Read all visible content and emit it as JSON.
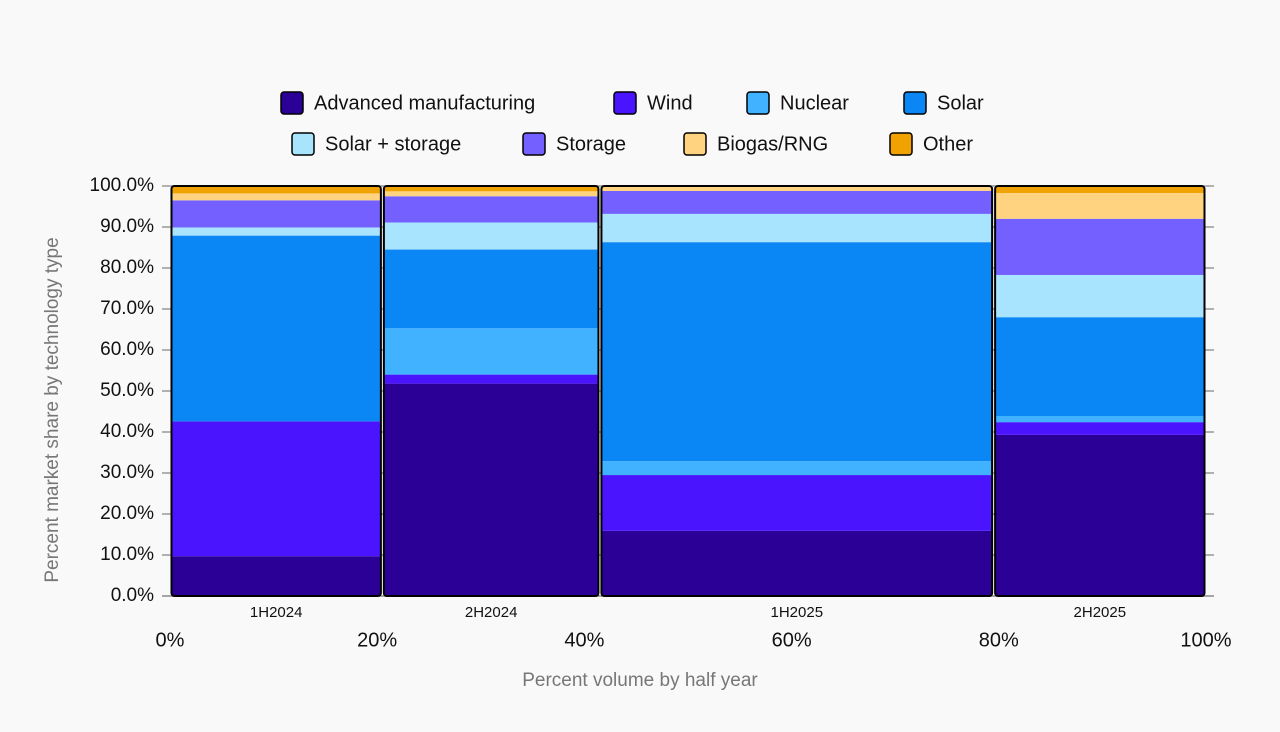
{
  "chart_data": {
    "type": "marimekko",
    "categories": [
      "1H2024",
      "2H2024",
      "1H2025",
      "2H2025"
    ],
    "widths": [
      20.5,
      21,
      38,
      20.5
    ],
    "series": [
      {
        "name": "Advanced manufacturing",
        "color": "#2a0096",
        "values": [
          9.7,
          51.8,
          15.9,
          39.3
        ]
      },
      {
        "name": "Wind",
        "color": "#4b14ff",
        "values": [
          32.9,
          2.2,
          13.6,
          3.1
        ]
      },
      {
        "name": "Nuclear",
        "color": "#40b2ff",
        "values": [
          0,
          11.3,
          3.4,
          1.5
        ]
      },
      {
        "name": "Solar",
        "color": "#0a86f5",
        "values": [
          45.3,
          19.2,
          53.4,
          24.1
        ]
      },
      {
        "name": "Solar + storage",
        "color": "#a9e4ff",
        "values": [
          2,
          6.6,
          6.9,
          10.3
        ]
      },
      {
        "name": "Storage",
        "color": "#7460ff",
        "values": [
          6.6,
          6.4,
          5.6,
          13.7
        ]
      },
      {
        "name": "Biogas/RNG",
        "color": "#ffd380",
        "values": [
          1.7,
          1.2,
          1.2,
          6.3
        ]
      },
      {
        "name": "Other",
        "color": "#f0a200",
        "values": [
          1.8,
          1.3,
          0,
          1.7
        ]
      }
    ],
    "xlabel": "Percent volume by half year",
    "ylabel": "Percent market share by  technology type",
    "xlim": [
      0,
      100
    ],
    "ylim": [
      0,
      100
    ],
    "xticks": [
      {
        "value": 0,
        "label": "0%"
      },
      {
        "value": 20,
        "label": "20%"
      },
      {
        "value": 40,
        "label": "40%"
      },
      {
        "value": 60,
        "label": "60%"
      },
      {
        "value": 80,
        "label": "80%"
      },
      {
        "value": 100,
        "label": "100%"
      }
    ],
    "yticks": [
      {
        "value": 0,
        "label": "0.0%"
      },
      {
        "value": 10,
        "label": "10.0%"
      },
      {
        "value": 20,
        "label": "20.0%"
      },
      {
        "value": 30,
        "label": "30.0%"
      },
      {
        "value": 40,
        "label": "40.0%"
      },
      {
        "value": 50,
        "label": "50.0%"
      },
      {
        "value": 60,
        "label": "60.0%"
      },
      {
        "value": 70,
        "label": "70.0%"
      },
      {
        "value": 80,
        "label": "80.0%"
      },
      {
        "value": 90,
        "label": "90.0%"
      },
      {
        "value": 100,
        "label": "100.0%"
      }
    ],
    "grid": true
  }
}
